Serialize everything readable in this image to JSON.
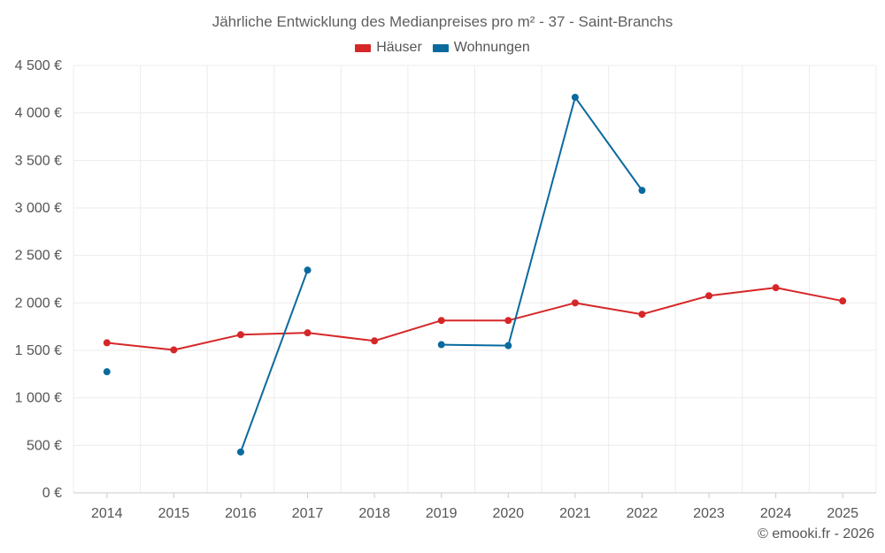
{
  "chart_data": {
    "type": "line",
    "title": "Jährliche Entwicklung des Medianpreises pro m² - 37 - Saint-Branchs",
    "xlabel": "",
    "ylabel": "",
    "categories": [
      "2014",
      "2015",
      "2016",
      "2017",
      "2018",
      "2019",
      "2020",
      "2021",
      "2022",
      "2023",
      "2024",
      "2025"
    ],
    "ylim": [
      0,
      4500
    ],
    "yticks": [
      0,
      500,
      1000,
      1500,
      2000,
      2500,
      3000,
      3500,
      4000,
      4500
    ],
    "ytick_labels": [
      "0 €",
      "500 €",
      "1 000 €",
      "1 500 €",
      "2 000 €",
      "2 500 €",
      "3 000 €",
      "3 500 €",
      "4 000 €",
      "4 500 €"
    ],
    "grid": true,
    "legend_position": "top-center",
    "series": [
      {
        "name": "Häuser",
        "color": "#d62728",
        "values": [
          1580,
          1505,
          1665,
          1685,
          1600,
          1815,
          1815,
          2000,
          1880,
          2075,
          2160,
          2020
        ]
      },
      {
        "name": "Wohnungen",
        "color": "#0a6a9e",
        "values": [
          1275,
          null,
          430,
          2345,
          null,
          1560,
          1550,
          4165,
          3185,
          null,
          null,
          null
        ]
      }
    ]
  },
  "footer": {
    "copyright": "© emooki.fr - 2026"
  }
}
